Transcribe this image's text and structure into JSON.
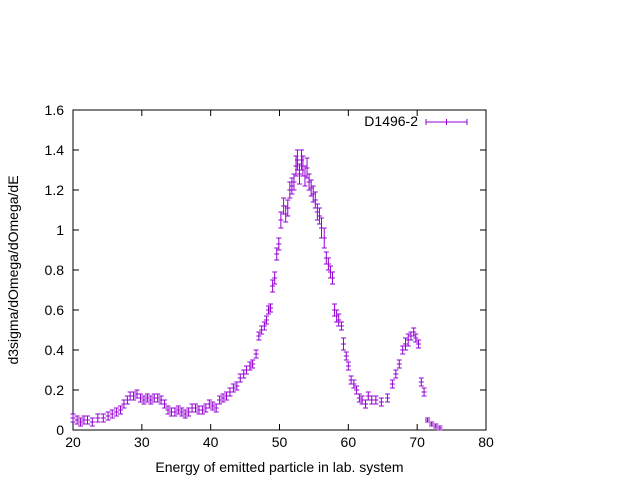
{
  "chart_data": {
    "type": "scatter",
    "title": "",
    "xlabel": "Energy of emitted particle in lab. system",
    "ylabel": "d3sigma/dOmega/dOmega/dE",
    "xlim": [
      20,
      80
    ],
    "ylim": [
      0,
      1.6
    ],
    "xticks": [
      20,
      30,
      40,
      50,
      60,
      70,
      80
    ],
    "yticks": [
      0,
      0.2,
      0.4,
      0.6,
      0.8,
      1,
      1.2,
      1.4,
      1.6
    ],
    "ytick_labels": [
      "0",
      "0.2",
      "0.4",
      "0.6",
      "0.8",
      "1",
      "1.2",
      "1.4",
      "1.6"
    ],
    "grid": false,
    "legend_position": "top-right",
    "series": [
      {
        "name": "D1496-2",
        "color": "#9400d3",
        "x": [
          20.0,
          20.6,
          21.1,
          21.6,
          22.1,
          22.8,
          23.6,
          24.4,
          25.1,
          25.7,
          26.3,
          26.9,
          27.4,
          27.9,
          28.3,
          28.8,
          29.3,
          29.8,
          30.3,
          30.8,
          31.3,
          31.8,
          32.3,
          32.8,
          33.3,
          33.8,
          34.3,
          34.8,
          35.3,
          35.8,
          36.3,
          36.8,
          37.3,
          37.8,
          38.3,
          38.8,
          39.3,
          39.8,
          40.3,
          40.8,
          41.3,
          41.8,
          42.3,
          42.8,
          43.3,
          43.8,
          44.3,
          44.8,
          45.2,
          45.7,
          46.1,
          46.6,
          47.0,
          47.4,
          47.8,
          48.1,
          48.4,
          48.7,
          49.0,
          49.3,
          49.6,
          49.9,
          50.2,
          50.6,
          50.9,
          51.2,
          51.5,
          51.8,
          52.1,
          52.4,
          52.6,
          52.9,
          53.2,
          53.4,
          53.7,
          54.0,
          54.3,
          54.6,
          54.9,
          55.2,
          55.5,
          55.8,
          56.1,
          56.5,
          56.8,
          57.1,
          57.4,
          57.7,
          58.0,
          58.3,
          58.6,
          59.0,
          59.3,
          59.7,
          60.0,
          60.4,
          60.8,
          61.2,
          61.6,
          62.0,
          62.5,
          62.9,
          63.4,
          64.0,
          64.8,
          65.7,
          66.4,
          66.9,
          67.4,
          67.9,
          68.3,
          68.7,
          69.1,
          69.5,
          69.8,
          70.2,
          70.6,
          71.0,
          71.5,
          72.1,
          72.7,
          73.3
        ],
        "y": [
          0.06,
          0.05,
          0.04,
          0.05,
          0.05,
          0.04,
          0.06,
          0.06,
          0.07,
          0.08,
          0.09,
          0.1,
          0.13,
          0.15,
          0.17,
          0.17,
          0.18,
          0.16,
          0.15,
          0.16,
          0.15,
          0.16,
          0.16,
          0.15,
          0.13,
          0.1,
          0.09,
          0.09,
          0.1,
          0.09,
          0.08,
          0.09,
          0.11,
          0.11,
          0.1,
          0.1,
          0.11,
          0.13,
          0.12,
          0.11,
          0.15,
          0.16,
          0.17,
          0.19,
          0.21,
          0.22,
          0.26,
          0.28,
          0.3,
          0.32,
          0.33,
          0.38,
          0.47,
          0.5,
          0.52,
          0.55,
          0.6,
          0.61,
          0.72,
          0.76,
          0.88,
          0.93,
          1.05,
          1.12,
          1.08,
          1.11,
          1.2,
          1.22,
          1.24,
          1.32,
          1.35,
          1.28,
          1.35,
          1.32,
          1.27,
          1.31,
          1.24,
          1.21,
          1.18,
          1.15,
          1.09,
          1.07,
          1.01,
          0.96,
          0.86,
          0.83,
          0.79,
          0.76,
          0.6,
          0.57,
          0.55,
          0.52,
          0.43,
          0.37,
          0.32,
          0.25,
          0.23,
          0.2,
          0.16,
          0.15,
          0.13,
          0.17,
          0.15,
          0.15,
          0.14,
          0.16,
          0.23,
          0.28,
          0.33,
          0.4,
          0.43,
          0.45,
          0.47,
          0.49,
          0.46,
          0.43,
          0.24,
          0.19,
          0.05,
          0.03,
          0.02,
          0.01
        ],
        "err": [
          0.02,
          0.02,
          0.02,
          0.02,
          0.02,
          0.02,
          0.02,
          0.02,
          0.02,
          0.02,
          0.02,
          0.02,
          0.02,
          0.02,
          0.02,
          0.02,
          0.02,
          0.02,
          0.02,
          0.02,
          0.02,
          0.02,
          0.02,
          0.02,
          0.02,
          0.02,
          0.02,
          0.02,
          0.02,
          0.02,
          0.02,
          0.02,
          0.02,
          0.02,
          0.02,
          0.02,
          0.02,
          0.02,
          0.02,
          0.02,
          0.02,
          0.02,
          0.02,
          0.02,
          0.02,
          0.02,
          0.02,
          0.02,
          0.02,
          0.02,
          0.02,
          0.02,
          0.02,
          0.02,
          0.02,
          0.02,
          0.02,
          0.02,
          0.03,
          0.03,
          0.03,
          0.03,
          0.04,
          0.04,
          0.04,
          0.04,
          0.04,
          0.04,
          0.04,
          0.05,
          0.05,
          0.05,
          0.05,
          0.05,
          0.05,
          0.05,
          0.04,
          0.04,
          0.04,
          0.04,
          0.04,
          0.04,
          0.05,
          0.05,
          0.03,
          0.03,
          0.03,
          0.03,
          0.03,
          0.03,
          0.03,
          0.02,
          0.03,
          0.02,
          0.02,
          0.02,
          0.02,
          0.02,
          0.02,
          0.02,
          0.02,
          0.02,
          0.02,
          0.02,
          0.02,
          0.02,
          0.02,
          0.02,
          0.02,
          0.02,
          0.03,
          0.03,
          0.02,
          0.02,
          0.02,
          0.02,
          0.02,
          0.02,
          0.01,
          0.01,
          0.01,
          0.01
        ]
      }
    ]
  }
}
